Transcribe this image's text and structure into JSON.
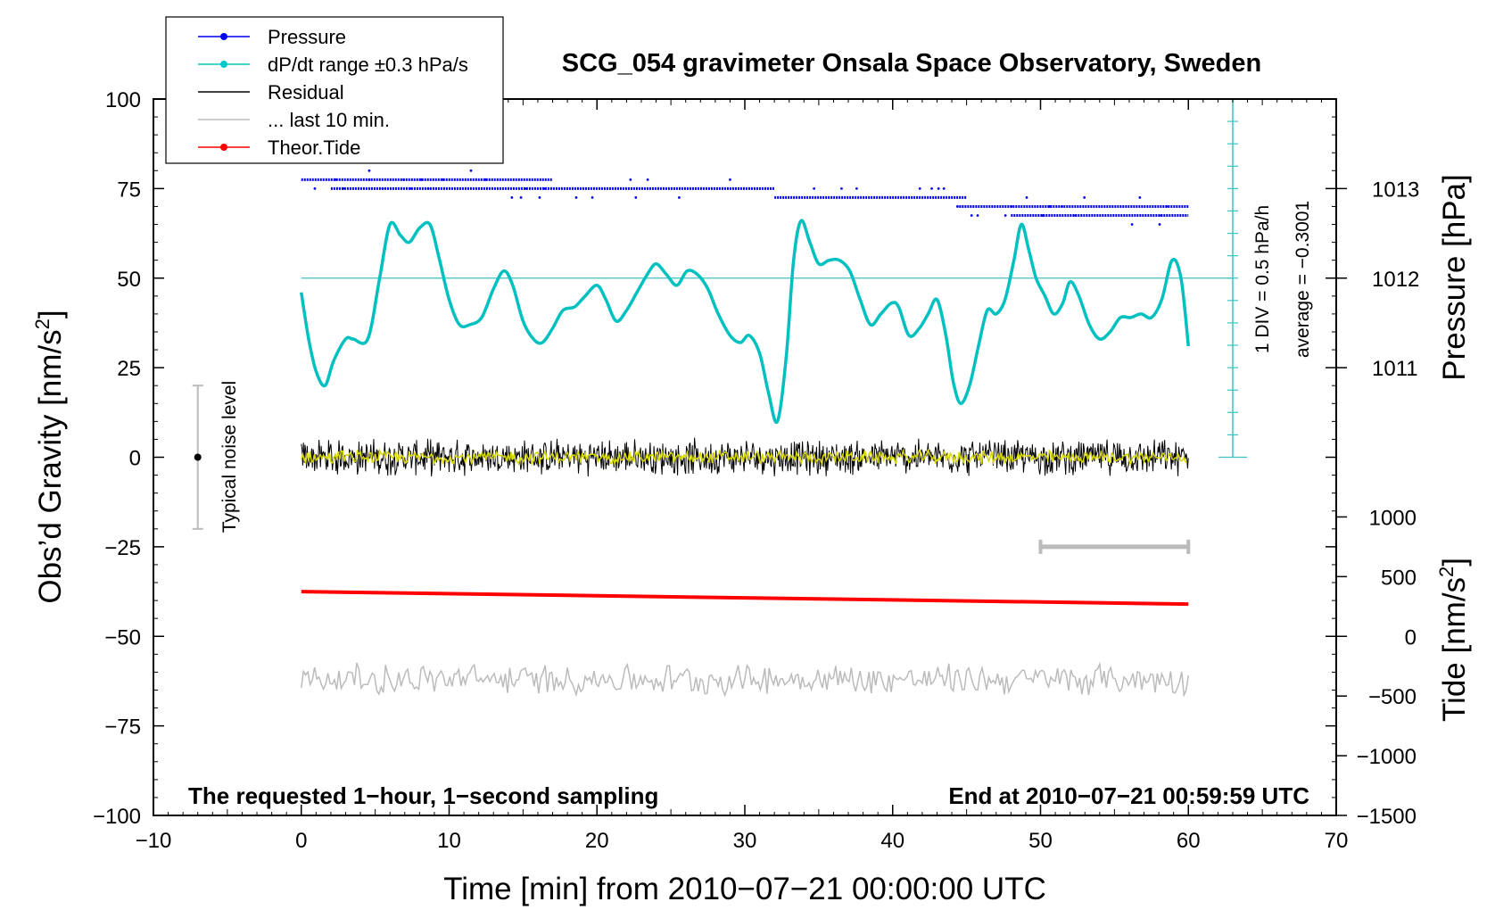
{
  "chart_data": {
    "type": "line",
    "title": "SCG_054 gravimeter Onsala Space Observatory, Sweden",
    "xlabel": "Time [min] from 2010−07−21 00:00:00 UTC",
    "ylabel": "Obs’d Gravity [nm/s²]",
    "ylabel_parts": {
      "main": "Obs’d Gravity [nm/s",
      "sup": "2",
      "end": "]"
    },
    "xlim": [
      -10,
      70
    ],
    "ylim": [
      -100,
      100
    ],
    "xticks": [
      -10,
      0,
      10,
      20,
      30,
      40,
      50,
      60,
      70
    ],
    "xtick_labels": [
      "−10",
      "0",
      "10",
      "20",
      "30",
      "40",
      "50",
      "60",
      "70"
    ],
    "yticks": [
      -100,
      -75,
      -50,
      -25,
      0,
      25,
      50,
      75,
      100
    ],
    "ytick_labels": [
      "−100",
      "−75",
      "−50",
      "−25",
      "0",
      "25",
      "50",
      "75",
      "100"
    ],
    "pressure_axis": {
      "label": "Pressure [hPa]",
      "ticks": [
        1011,
        1012,
        1013
      ],
      "tick_labels": [
        "1011",
        "1012",
        "1013"
      ],
      "ref_gravity": [
        25,
        50,
        75
      ]
    },
    "tide_axis": {
      "label_main": "Tide [nm/s",
      "label_sup": "2",
      "label_end": "]",
      "ticks": [
        -1500,
        -1000,
        -500,
        0,
        500,
        1000
      ],
      "tick_labels": [
        "−1500",
        "−1000",
        "−500",
        "0",
        "500",
        "1000"
      ],
      "gravity_at": [
        -100,
        -83.33,
        -66.67,
        -50,
        -33.33,
        -16.67
      ]
    },
    "legend": {
      "placement": "top-left",
      "entries": [
        {
          "label": "Pressure",
          "color": "#0000ee",
          "marker": true
        },
        {
          "label": "dP/dt range ±0.3 hPa/s",
          "color": "#00c8c8",
          "marker": true
        },
        {
          "label": "Residual",
          "color": "#000000",
          "marker": false
        },
        {
          "label": "... last 10 min.",
          "color": "#bbbbbb",
          "marker": false
        },
        {
          "label": "Theor.Tide",
          "color": "#ff0000",
          "marker": true
        }
      ]
    },
    "annotations": {
      "bottom_left": "The requested 1−hour, 1−second sampling",
      "bottom_right": "End at 2010−07−21 00:59:59 UTC",
      "noise_label": "Typical noise level",
      "div_label": "1 DIV = 0.5 hPa/h",
      "average_label": "average = −0.3001"
    },
    "noise_bar": {
      "x": -7,
      "center": 0,
      "low": -20,
      "high": 20
    },
    "last10_bar": {
      "x_start": 50,
      "x_end": 60,
      "y": -25
    },
    "dpdt_reference": 50,
    "dpdt_scale": {
      "x": 63,
      "y_top": 100,
      "y_bottom": 0,
      "tick_step": 6.25
    },
    "series": [
      {
        "name": "Pressure",
        "color": "#0000ee",
        "style": "dots",
        "levels": [
          {
            "x": [
              0,
              17
            ],
            "y": 77.5
          },
          {
            "x": [
              2,
              32
            ],
            "y": 75
          },
          {
            "x": [
              32,
              45
            ],
            "y": 72.5
          },
          {
            "x": [
              44.5,
              60
            ],
            "y": 70
          },
          {
            "x": [
              48,
              60
            ],
            "y": 67.5
          }
        ]
      },
      {
        "name": "dP/dt",
        "color": "#00c0c0",
        "style": "line",
        "x": [
          0,
          0.5,
          1,
          1.6,
          2.2,
          3,
          3.5,
          4.5,
          5.3,
          6,
          6.7,
          7.3,
          8,
          8.7,
          9.3,
          10,
          10.7,
          11.4,
          12.2,
          13,
          13.7,
          14.3,
          15,
          15.7,
          16.3,
          17,
          17.7,
          18.5,
          19.2,
          20,
          20.6,
          21.3,
          22,
          22.7,
          23.4,
          24,
          24.7,
          25.4,
          26.1,
          26.8,
          27.5,
          28.2,
          29,
          29.7,
          30.3,
          31,
          31.6,
          32.2,
          32.8,
          33.3,
          33.8,
          34.4,
          35,
          35.7,
          36.4,
          37.1,
          37.8,
          38.5,
          39.2,
          39.9,
          40.4,
          41.1,
          41.8,
          42.4,
          43,
          43.6,
          44.1,
          44.6,
          45.2,
          45.8,
          46.4,
          47,
          47.6,
          48.2,
          48.7,
          49.2,
          49.7,
          50.3,
          50.9,
          51.5,
          52,
          52.6,
          53.3,
          54,
          54.7,
          55.4,
          56.1,
          56.8,
          57.5,
          58.2,
          58.9,
          59.5,
          60
        ],
        "y": [
          46,
          33,
          24,
          20,
          27,
          33,
          33,
          33,
          50,
          65,
          62,
          60,
          64,
          65,
          56,
          44,
          37,
          37,
          39,
          47,
          52,
          48,
          38,
          33,
          32,
          36,
          41,
          42,
          45,
          48,
          44,
          38,
          41,
          46,
          51,
          54,
          51,
          48,
          52,
          51,
          47,
          40,
          34,
          32,
          34,
          29,
          18,
          10,
          28,
          55,
          66,
          60,
          54,
          55,
          55,
          52,
          44,
          37,
          40,
          43,
          42,
          34,
          36,
          40,
          44,
          34,
          21,
          15,
          20,
          31,
          41,
          40,
          44,
          55,
          65,
          58,
          50,
          45,
          40,
          43,
          49,
          45,
          37,
          33,
          35,
          39,
          39,
          40,
          39,
          44,
          55,
          50,
          31
        ]
      },
      {
        "name": "Residual",
        "color": "#000000",
        "style": "noise",
        "x_range": [
          0,
          60
        ],
        "center": 0,
        "amplitude": 4
      },
      {
        "name": "Residual (smoothed)",
        "color": "#d8d800",
        "style": "noise",
        "x_range": [
          0,
          60
        ],
        "center": 0,
        "amplitude": 1.5
      },
      {
        "name": "Theor.Tide",
        "color": "#ff0000",
        "style": "line",
        "x": [
          0,
          60
        ],
        "y": [
          -37.5,
          -41
        ]
      },
      {
        "name": "... last 10 min.",
        "color": "#bbbbbb",
        "style": "noise",
        "x_range": [
          0,
          60
        ],
        "center": -62,
        "amplitude": 3.5
      }
    ]
  }
}
